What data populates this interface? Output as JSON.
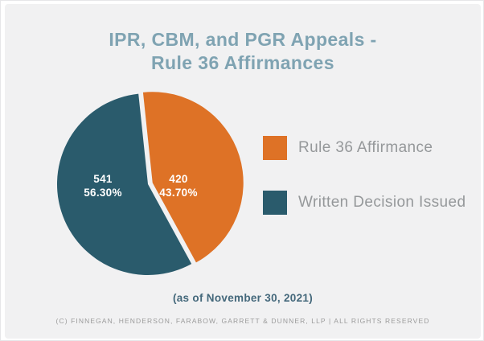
{
  "card": {
    "title_line1": "IPR, CBM, and PGR Appeals -",
    "title_line2": "Rule 36 Affirmances",
    "as_of": "(as of November 30, 2021)",
    "copyright": "(C) FINNEGAN, HENDERSON, FARABOW, GARRETT & DUNNER, LLP | ALL RIGHTS RESERVED"
  },
  "chart_data": {
    "type": "pie",
    "title": "IPR, CBM, and PGR Appeals - Rule 36 Affirmances",
    "start_angle_deg": -6,
    "legend_position": "right",
    "data_labels": "value and percent inside slices",
    "slices": [
      {
        "label": "Rule 36 Affirmance",
        "value": 420,
        "percent": "43.70%",
        "color": "#de7226",
        "exploded": true
      },
      {
        "label": "Written Decision Issued",
        "value": 541,
        "percent": "56.30%",
        "color": "#2a5b6c",
        "exploded": false
      }
    ]
  },
  "colors": {
    "card_background": "#f1f1f2",
    "title_text": "#7fa3b2",
    "legend_text": "#95989a",
    "as_of_text": "#44687b",
    "copyright_text": "#9b9b9b",
    "slice_label_text": "#ffffff"
  }
}
